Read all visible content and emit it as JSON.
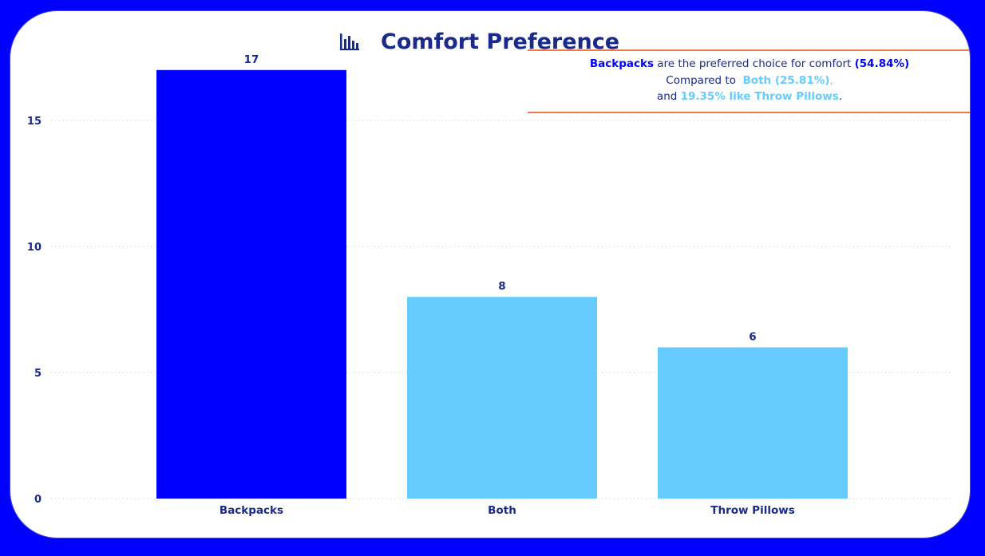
{
  "colors": {
    "frame": "#0000FF",
    "card": "#FFFFFF",
    "title": "#1A2A8A",
    "highlight_bar": "#0000FF",
    "other_bar": "#66CCFF",
    "callout_rule": "#EE7A4A"
  },
  "header": {
    "icon": "bar-chart-icon",
    "title": "Comfort Preference"
  },
  "callout": {
    "line1": {
      "lead": "Backpacks",
      "middle": " are the preferred choice for comfort ",
      "pct": "(54.84%)"
    },
    "line2": {
      "lead": "Compared to ",
      "item": "Both (25.81%)",
      "tail": ","
    },
    "line3": {
      "lead": "and ",
      "item": "19.35% like Throw Pillows",
      "tail": "."
    }
  },
  "chart_data": {
    "type": "bar",
    "title": "Comfort Preference",
    "categories": [
      "Backpacks",
      "Both",
      "Throw Pillows"
    ],
    "values": [
      17,
      8,
      6
    ],
    "highlight_index": 0,
    "ylim": [
      0,
      17
    ],
    "yticks": [
      0,
      5,
      10,
      15
    ],
    "grid": true,
    "xlabel": "",
    "ylabel": ""
  }
}
